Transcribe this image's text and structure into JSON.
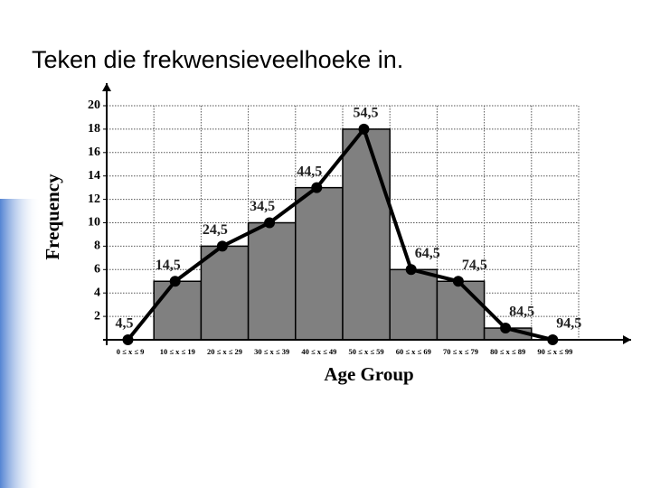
{
  "title": "Teken die frekwensieveelhoeke in.",
  "chart_data": {
    "type": "histogram",
    "x_label": "Age Group",
    "y_label": "Frequency",
    "bins": [
      0,
      10,
      20,
      30,
      40,
      50,
      60,
      70,
      80,
      90,
      100
    ],
    "categories": [
      "0 ≤ x ≤ 9",
      "10 ≤ x ≤ 19",
      "20 ≤ x ≤ 29",
      "30 ≤ x ≤ 39",
      "40 ≤ x ≤ 49",
      "50 ≤ x ≤ 59",
      "60 ≤ x ≤ 69",
      "70 ≤ x ≤ 79",
      "80 ≤ x ≤ 89",
      "90 ≤ x ≤ 99"
    ],
    "values": [
      0,
      5,
      8,
      10,
      13,
      18,
      6,
      5,
      1,
      0
    ],
    "color": "#808080",
    "polygon": {
      "color": "#000000",
      "x": [
        {
          "value": 4.5,
          "label": "4,5"
        },
        {
          "value": 14.5,
          "label": "14,5"
        },
        {
          "value": 24.5,
          "label": "24,5"
        },
        {
          "value": 34.5,
          "label": "34,5"
        },
        {
          "value": 44.5,
          "label": "44,5"
        },
        {
          "value": 54.5,
          "label": "54,5"
        },
        {
          "value": 64.5,
          "label": "64,5"
        },
        {
          "value": 74.5,
          "label": "74,5"
        },
        {
          "value": 84.5,
          "label": "84,5"
        },
        {
          "value": 94.5,
          "label": "94,5"
        }
      ],
      "values": [
        0,
        5,
        8,
        10,
        13,
        18,
        6,
        5,
        1,
        0
      ]
    },
    "xlim": [
      0,
      100
    ],
    "ylim": [
      0,
      20
    ],
    "yticks": [
      2,
      4,
      6,
      8,
      10,
      12,
      14,
      16,
      18,
      20
    ],
    "grid": true
  }
}
